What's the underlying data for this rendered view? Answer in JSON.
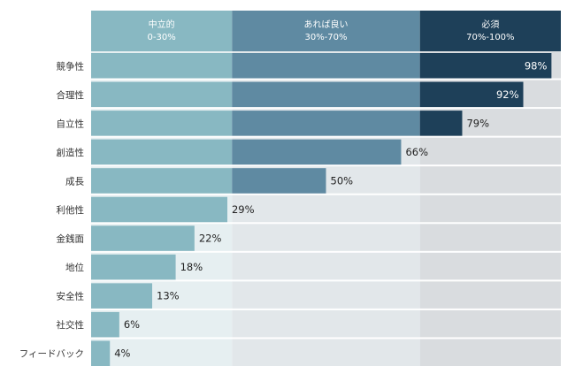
{
  "chart_data": {
    "type": "bar",
    "orientation": "horizontal",
    "bands": [
      {
        "label": "中立的",
        "range": "0-30%",
        "from": 0,
        "to": 30,
        "color": "#88b8c2",
        "bg": "#e6eff1"
      },
      {
        "label": "あれば良い",
        "range": "30%-70%",
        "from": 30,
        "to": 70,
        "color": "#5f8aa2",
        "bg": "#e2e7ea"
      },
      {
        "label": "必須",
        "range": "70%-100%",
        "from": 70,
        "to": 100,
        "color": "#1e4059",
        "bg": "#d9dcdf"
      }
    ],
    "categories": [
      "競争性",
      "合理性",
      "自立性",
      "創造性",
      "成長",
      "利他性",
      "金銭面",
      "地位",
      "安全性",
      "社交性",
      "フィードバック"
    ],
    "values": [
      98,
      92,
      79,
      66,
      50,
      29,
      22,
      18,
      13,
      6,
      4
    ],
    "value_labels": [
      "98%",
      "92%",
      "79%",
      "66%",
      "50%",
      "29%",
      "22%",
      "18%",
      "13%",
      "6%",
      "4%"
    ],
    "xlim": [
      0,
      100
    ]
  }
}
